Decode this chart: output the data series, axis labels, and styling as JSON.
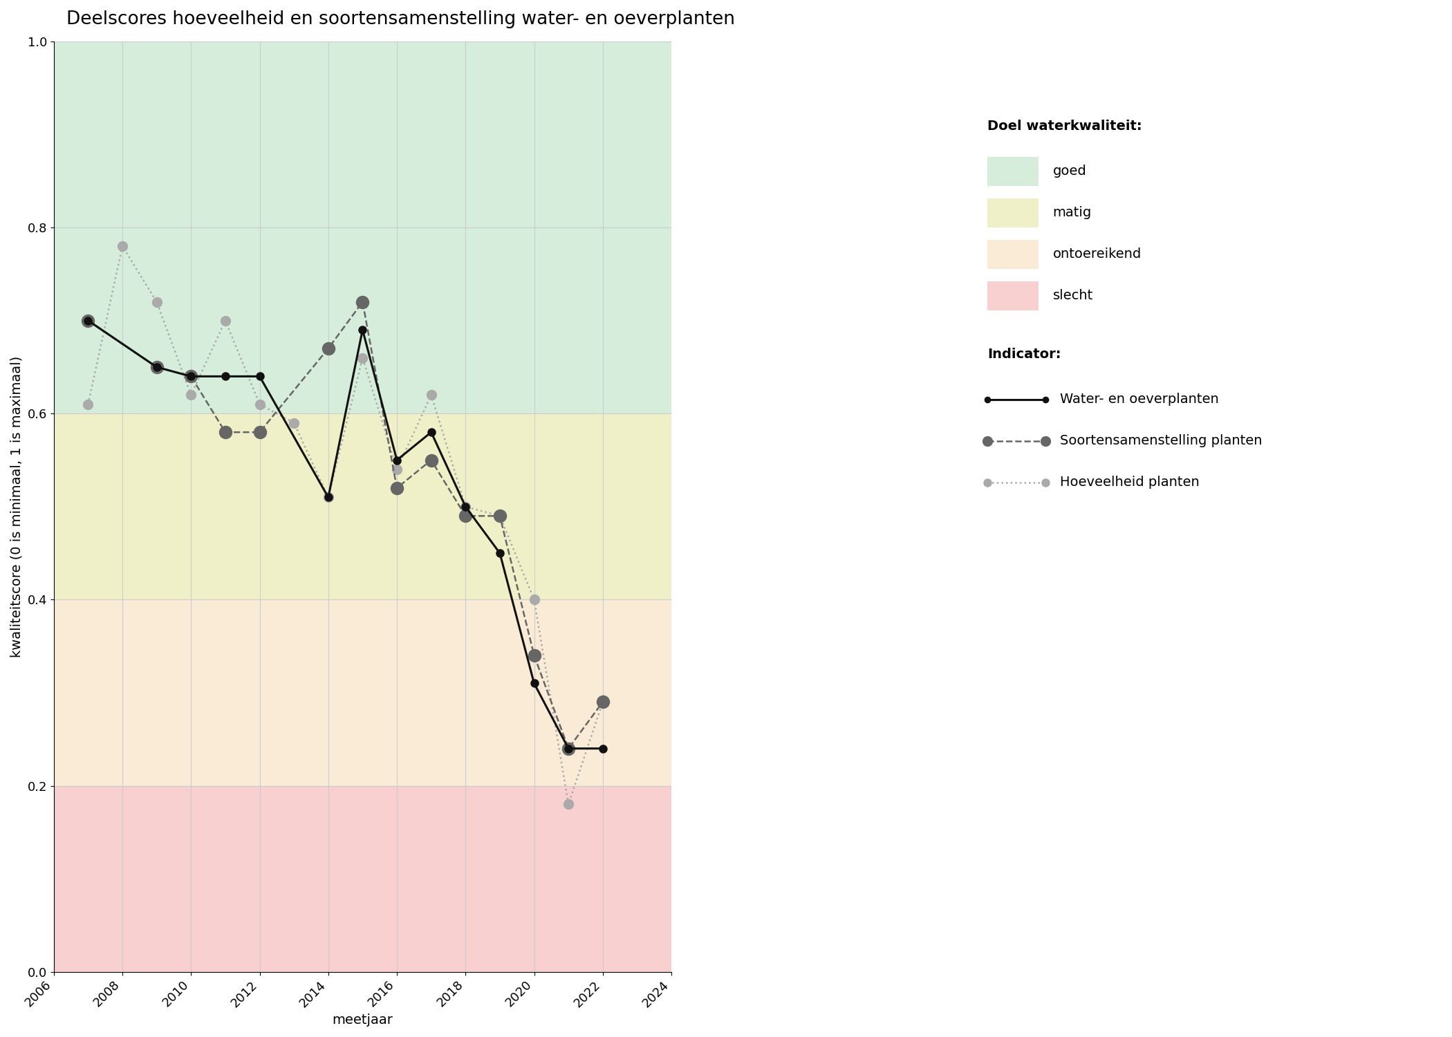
{
  "title": "Deelscores hoeveelheid en soortensamenstelling water- en oeverplanten",
  "xlabel": "meetjaar",
  "ylabel": "kwaliteitscore (0 is minimaal, 1 is maximaal)",
  "xlim": [
    2006,
    2024
  ],
  "ylim": [
    0.0,
    1.0
  ],
  "xticks": [
    2006,
    2008,
    2010,
    2012,
    2014,
    2016,
    2018,
    2020,
    2022,
    2024
  ],
  "yticks": [
    0.0,
    0.2,
    0.4,
    0.6,
    0.8,
    1.0
  ],
  "background_color": "#ffffff",
  "zones": [
    {
      "ymin": 0.6,
      "ymax": 1.0,
      "color": "#d5edda",
      "label": "goed"
    },
    {
      "ymin": 0.4,
      "ymax": 0.6,
      "color": "#f0f0c8",
      "label": "matig"
    },
    {
      "ymin": 0.2,
      "ymax": 0.4,
      "color": "#faebd7",
      "label": "ontoereikend"
    },
    {
      "ymin": 0.0,
      "ymax": 0.2,
      "color": "#f8d0d0",
      "label": "slecht"
    }
  ],
  "water_oever": {
    "years": [
      2007,
      2009,
      2010,
      2011,
      2012,
      2014,
      2015,
      2016,
      2017,
      2018,
      2019,
      2020,
      2021,
      2022
    ],
    "values": [
      0.7,
      0.65,
      0.64,
      0.64,
      0.64,
      0.51,
      0.69,
      0.55,
      0.58,
      0.5,
      0.45,
      0.31,
      0.24,
      0.24
    ],
    "color": "#111111",
    "linestyle": "-",
    "linewidth": 2.2,
    "marker": "o",
    "markersize": 8,
    "label": "Water- en oeverplanten"
  },
  "soortensamenstelling": {
    "years": [
      2007,
      2009,
      2010,
      2011,
      2012,
      2014,
      2015,
      2016,
      2017,
      2018,
      2019,
      2020,
      2021,
      2022
    ],
    "values": [
      0.7,
      0.65,
      0.64,
      0.58,
      0.58,
      0.67,
      0.72,
      0.52,
      0.55,
      0.49,
      0.49,
      0.34,
      0.24,
      0.29
    ],
    "color": "#666666",
    "linestyle": "--",
    "linewidth": 1.8,
    "marker": "o",
    "markersize": 13,
    "label": "Soortensamenstelling planten"
  },
  "hoeveelheid": {
    "years": [
      2007,
      2008,
      2009,
      2010,
      2011,
      2012,
      2013,
      2014,
      2015,
      2016,
      2017,
      2018,
      2019,
      2020,
      2021,
      2022
    ],
    "values": [
      0.61,
      0.78,
      0.72,
      0.62,
      0.7,
      0.61,
      0.59,
      0.51,
      0.66,
      0.54,
      0.62,
      0.5,
      0.49,
      0.4,
      0.18,
      0.29
    ],
    "color": "#aaaaaa",
    "linestyle": ":",
    "linewidth": 1.8,
    "marker": "o",
    "markersize": 10,
    "label": "Hoeveelheid planten"
  },
  "legend_zone_colors": [
    "#d5edda",
    "#f0f0c8",
    "#faebd7",
    "#f8d0d0"
  ],
  "legend_zone_labels": [
    "goed",
    "matig",
    "ontoereikend",
    "slecht"
  ],
  "grid_color": "#cccccc",
  "title_fontsize": 19,
  "label_fontsize": 14,
  "tick_fontsize": 13,
  "legend_fontsize": 14
}
